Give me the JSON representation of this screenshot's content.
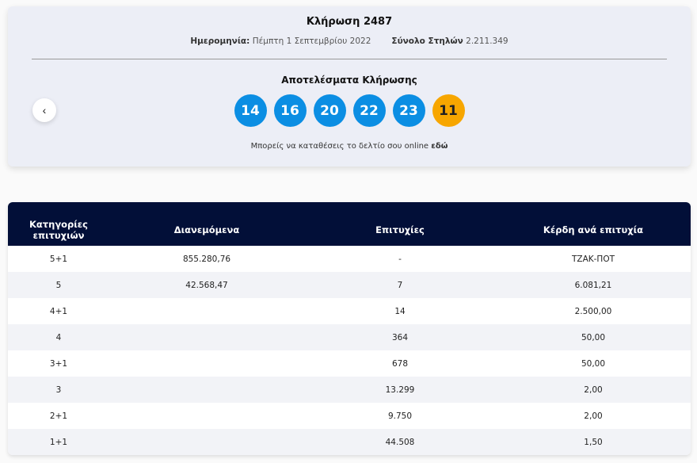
{
  "draw": {
    "title": "Κλήρωση 2487",
    "date_label": "Ημερομηνία:",
    "date": "Πέμπτη 1 Σεπτεμβρίου 2022",
    "total_label": "Σύνολο Στηλών",
    "total": "2.211.349",
    "results_title": "Αποτελέσματα Κλήρωσης",
    "numbers": [
      "14",
      "16",
      "20",
      "22",
      "23"
    ],
    "bonus": "11",
    "note_text": "Μπορείς να καταθέσεις το δελτίο σου online ",
    "note_link": "εδώ",
    "prev_icon": "‹"
  },
  "colors": {
    "ball": "#0b8ee3",
    "bonus": "#f7a600",
    "header": "#020f38"
  },
  "table": {
    "headers": [
      "Κατηγορίες επιτυχιών",
      "Διανεμόμενα",
      "Επιτυχίες",
      "Κέρδη ανά επιτυχία"
    ],
    "rows": [
      [
        "5+1",
        "855.280,76",
        "-",
        "ΤΖΑΚ-ΠΟΤ"
      ],
      [
        "5",
        "42.568,47",
        "7",
        "6.081,21"
      ],
      [
        "4+1",
        "",
        "14",
        "2.500,00"
      ],
      [
        "4",
        "",
        "364",
        "50,00"
      ],
      [
        "3+1",
        "",
        "678",
        "50,00"
      ],
      [
        "3",
        "",
        "13.299",
        "2,00"
      ],
      [
        "2+1",
        "",
        "9.750",
        "2,00"
      ],
      [
        "1+1",
        "",
        "44.508",
        "1,50"
      ]
    ]
  }
}
